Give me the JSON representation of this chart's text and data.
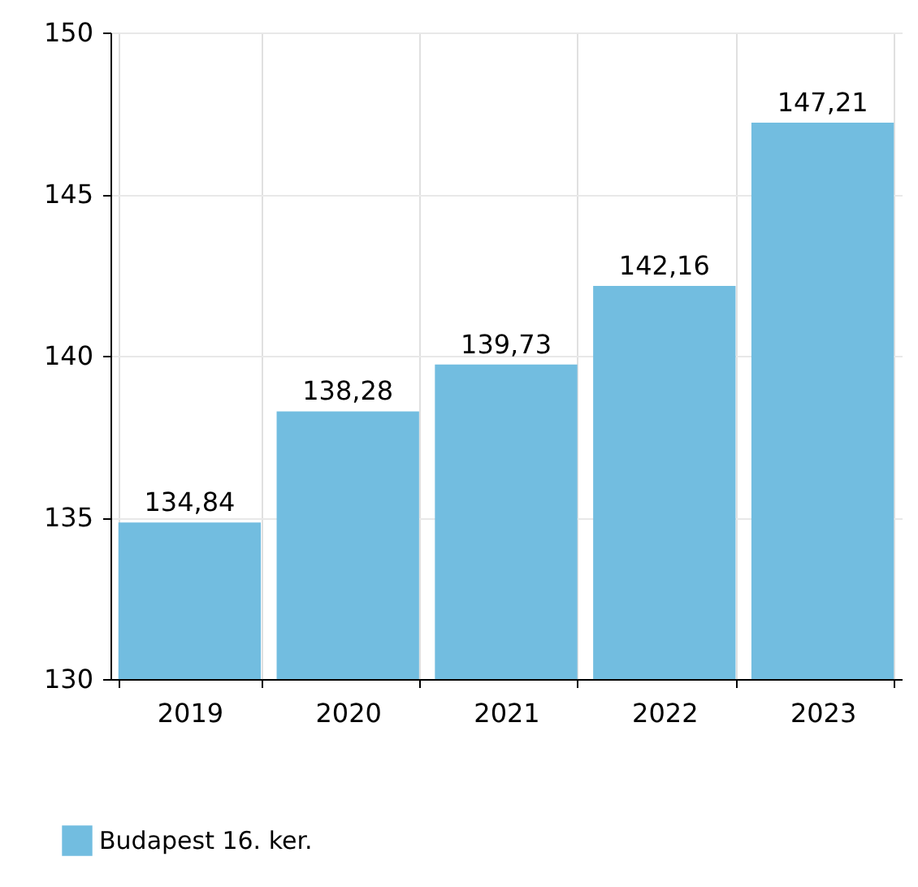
{
  "chart_data": {
    "type": "bar",
    "categories": [
      "2019",
      "2020",
      "2021",
      "2022",
      "2023"
    ],
    "series": [
      {
        "name": "Budapest 16. ker.",
        "color": "#72bde0",
        "values": [
          134.84,
          138.28,
          139.73,
          142.16,
          147.21
        ],
        "value_labels": [
          "134,84",
          "138,28",
          "139,73",
          "142,16",
          "147,21"
        ]
      }
    ],
    "ylim": [
      130,
      150
    ],
    "yticks": [
      130,
      135,
      140,
      145,
      150
    ],
    "grid": true,
    "legend": "bottom left"
  }
}
